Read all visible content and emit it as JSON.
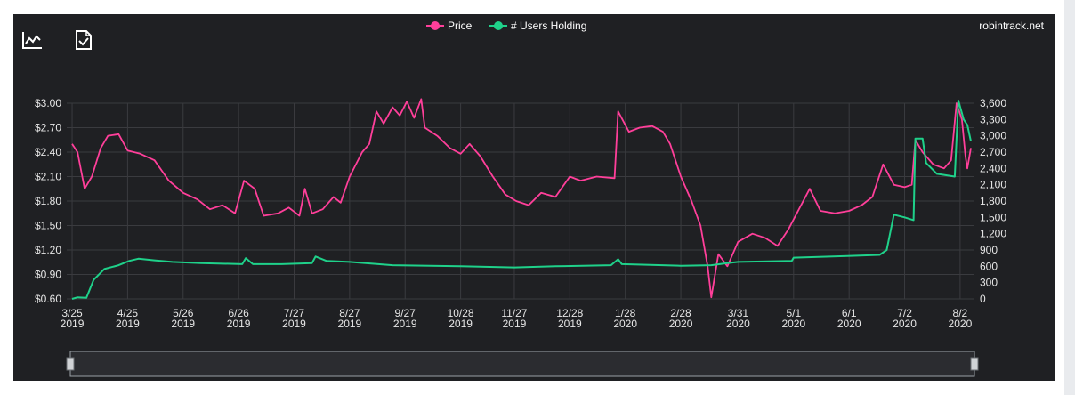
{
  "colors": {
    "background": "#1f2023",
    "price": "#ff3f9a",
    "users": "#1fd18a",
    "grid": "#3a3b3f",
    "text": "#e6e6e6",
    "slider_border": "#9aa0a6"
  },
  "toolbar": {
    "chart_icon": "line-chart-icon",
    "export_icon": "file-check-icon"
  },
  "watermark": "robintrack.net",
  "chart_data": {
    "type": "line",
    "legend_placement": "top-center",
    "grid": true,
    "x_ticks": [
      {
        "date": "2019-03-25",
        "l1": "3/25",
        "l2": "2019"
      },
      {
        "date": "2019-04-25",
        "l1": "4/25",
        "l2": "2019"
      },
      {
        "date": "2019-05-26",
        "l1": "5/26",
        "l2": "2019"
      },
      {
        "date": "2019-06-26",
        "l1": "6/26",
        "l2": "2019"
      },
      {
        "date": "2019-07-27",
        "l1": "7/27",
        "l2": "2019"
      },
      {
        "date": "2019-08-27",
        "l1": "8/27",
        "l2": "2019"
      },
      {
        "date": "2019-09-27",
        "l1": "9/27",
        "l2": "2019"
      },
      {
        "date": "2019-10-28",
        "l1": "10/28",
        "l2": "2019"
      },
      {
        "date": "2019-11-27",
        "l1": "11/27",
        "l2": "2019"
      },
      {
        "date": "2019-12-28",
        "l1": "12/28",
        "l2": "2019"
      },
      {
        "date": "2020-01-28",
        "l1": "1/28",
        "l2": "2020"
      },
      {
        "date": "2020-02-28",
        "l1": "2/28",
        "l2": "2020"
      },
      {
        "date": "2020-03-31",
        "l1": "3/31",
        "l2": "2020"
      },
      {
        "date": "2020-05-01",
        "l1": "5/1",
        "l2": "2020"
      },
      {
        "date": "2020-06-01",
        "l1": "6/1",
        "l2": "2020"
      },
      {
        "date": "2020-07-02",
        "l1": "7/2",
        "l2": "2020"
      },
      {
        "date": "2020-08-02",
        "l1": "8/2",
        "l2": "2020"
      }
    ],
    "x_range": [
      "2019-03-22",
      "2020-08-10"
    ],
    "y_left": {
      "ylim": [
        0.6,
        3.0
      ],
      "ticks": [
        0.6,
        0.9,
        1.2,
        1.5,
        1.8,
        2.1,
        2.4,
        2.7,
        3.0
      ],
      "tick_labels": [
        "$0.60",
        "$0.90",
        "$1.20",
        "$1.50",
        "$1.80",
        "$2.10",
        "$2.40",
        "$2.70",
        "$3.00"
      ]
    },
    "y_right": {
      "ylim": [
        0,
        3600
      ],
      "ticks": [
        0,
        300,
        600,
        900,
        1200,
        1500,
        1800,
        2100,
        2400,
        2700,
        3000,
        3300,
        3600
      ],
      "tick_labels": [
        "0",
        "300",
        "600",
        "900",
        "1,200",
        "1,500",
        "1,800",
        "2,100",
        "2,400",
        "2,700",
        "3,000",
        "3,300",
        "3,600"
      ]
    },
    "series": [
      {
        "name": "Price",
        "axis": "left",
        "points": [
          [
            "2019-03-25",
            2.5
          ],
          [
            "2019-03-28",
            2.4
          ],
          [
            "2019-04-01",
            1.95
          ],
          [
            "2019-04-05",
            2.1
          ],
          [
            "2019-04-10",
            2.45
          ],
          [
            "2019-04-14",
            2.6
          ],
          [
            "2019-04-20",
            2.62
          ],
          [
            "2019-04-25",
            2.42
          ],
          [
            "2019-05-02",
            2.38
          ],
          [
            "2019-05-10",
            2.3
          ],
          [
            "2019-05-18",
            2.05
          ],
          [
            "2019-05-26",
            1.9
          ],
          [
            "2019-06-03",
            1.82
          ],
          [
            "2019-06-10",
            1.7
          ],
          [
            "2019-06-17",
            1.75
          ],
          [
            "2019-06-24",
            1.65
          ],
          [
            "2019-06-29",
            2.05
          ],
          [
            "2019-07-05",
            1.95
          ],
          [
            "2019-07-10",
            1.62
          ],
          [
            "2019-07-18",
            1.65
          ],
          [
            "2019-07-24",
            1.72
          ],
          [
            "2019-07-30",
            1.62
          ],
          [
            "2019-08-02",
            1.95
          ],
          [
            "2019-08-06",
            1.65
          ],
          [
            "2019-08-12",
            1.7
          ],
          [
            "2019-08-18",
            1.85
          ],
          [
            "2019-08-22",
            1.78
          ],
          [
            "2019-08-27",
            2.1
          ],
          [
            "2019-09-03",
            2.4
          ],
          [
            "2019-09-07",
            2.5
          ],
          [
            "2019-09-11",
            2.9
          ],
          [
            "2019-09-15",
            2.75
          ],
          [
            "2019-09-20",
            2.95
          ],
          [
            "2019-09-24",
            2.85
          ],
          [
            "2019-09-28",
            3.02
          ],
          [
            "2019-10-02",
            2.82
          ],
          [
            "2019-10-06",
            3.05
          ],
          [
            "2019-10-08",
            2.7
          ],
          [
            "2019-10-15",
            2.6
          ],
          [
            "2019-10-22",
            2.45
          ],
          [
            "2019-10-28",
            2.38
          ],
          [
            "2019-11-02",
            2.5
          ],
          [
            "2019-11-08",
            2.35
          ],
          [
            "2019-11-15",
            2.1
          ],
          [
            "2019-11-22",
            1.88
          ],
          [
            "2019-11-28",
            1.8
          ],
          [
            "2019-12-05",
            1.75
          ],
          [
            "2019-12-12",
            1.9
          ],
          [
            "2019-12-20",
            1.85
          ],
          [
            "2019-12-28",
            2.1
          ],
          [
            "2020-01-03",
            2.05
          ],
          [
            "2020-01-12",
            2.1
          ],
          [
            "2020-01-22",
            2.08
          ],
          [
            "2020-01-24",
            2.9
          ],
          [
            "2020-01-30",
            2.65
          ],
          [
            "2020-02-05",
            2.7
          ],
          [
            "2020-02-12",
            2.72
          ],
          [
            "2020-02-18",
            2.65
          ],
          [
            "2020-02-22",
            2.5
          ],
          [
            "2020-02-28",
            2.1
          ],
          [
            "2020-03-05",
            1.8
          ],
          [
            "2020-03-10",
            1.5
          ],
          [
            "2020-03-14",
            1.0
          ],
          [
            "2020-03-16",
            0.62
          ],
          [
            "2020-03-20",
            1.15
          ],
          [
            "2020-03-25",
            1.0
          ],
          [
            "2020-03-31",
            1.3
          ],
          [
            "2020-04-08",
            1.4
          ],
          [
            "2020-04-15",
            1.35
          ],
          [
            "2020-04-22",
            1.25
          ],
          [
            "2020-04-28",
            1.45
          ],
          [
            "2020-05-04",
            1.7
          ],
          [
            "2020-05-10",
            1.95
          ],
          [
            "2020-05-16",
            1.68
          ],
          [
            "2020-05-24",
            1.65
          ],
          [
            "2020-06-01",
            1.68
          ],
          [
            "2020-06-08",
            1.75
          ],
          [
            "2020-06-14",
            1.85
          ],
          [
            "2020-06-20",
            2.25
          ],
          [
            "2020-06-26",
            2.0
          ],
          [
            "2020-07-02",
            1.97
          ],
          [
            "2020-07-06",
            2.0
          ],
          [
            "2020-07-08",
            2.55
          ],
          [
            "2020-07-12",
            2.4
          ],
          [
            "2020-07-18",
            2.25
          ],
          [
            "2020-07-24",
            2.2
          ],
          [
            "2020-07-28",
            2.3
          ],
          [
            "2020-07-31",
            3.0
          ],
          [
            "2020-08-03",
            2.8
          ],
          [
            "2020-08-05",
            2.35
          ],
          [
            "2020-08-06",
            2.2
          ],
          [
            "2020-08-08",
            2.45
          ]
        ]
      },
      {
        "name": "# Users Holding",
        "axis": "right",
        "points": [
          [
            "2019-03-25",
            0
          ],
          [
            "2019-03-28",
            30
          ],
          [
            "2019-04-02",
            20
          ],
          [
            "2019-04-06",
            350
          ],
          [
            "2019-04-12",
            550
          ],
          [
            "2019-04-20",
            620
          ],
          [
            "2019-04-26",
            700
          ],
          [
            "2019-05-01",
            740
          ],
          [
            "2019-05-10",
            710
          ],
          [
            "2019-05-20",
            680
          ],
          [
            "2019-06-05",
            660
          ],
          [
            "2019-06-28",
            640
          ],
          [
            "2019-06-30",
            750
          ],
          [
            "2019-07-04",
            640
          ],
          [
            "2019-07-20",
            640
          ],
          [
            "2019-08-06",
            660
          ],
          [
            "2019-08-08",
            780
          ],
          [
            "2019-08-14",
            700
          ],
          [
            "2019-08-27",
            680
          ],
          [
            "2019-09-20",
            620
          ],
          [
            "2019-10-28",
            600
          ],
          [
            "2019-11-27",
            580
          ],
          [
            "2019-12-20",
            600
          ],
          [
            "2020-01-20",
            620
          ],
          [
            "2020-01-24",
            730
          ],
          [
            "2020-01-26",
            640
          ],
          [
            "2020-02-28",
            610
          ],
          [
            "2020-03-16",
            620
          ],
          [
            "2020-03-25",
            660
          ],
          [
            "2020-03-31",
            680
          ],
          [
            "2020-04-30",
            700
          ],
          [
            "2020-05-01",
            760
          ],
          [
            "2020-05-31",
            790
          ],
          [
            "2020-06-18",
            810
          ],
          [
            "2020-06-22",
            900
          ],
          [
            "2020-06-26",
            1550
          ],
          [
            "2020-07-02",
            1500
          ],
          [
            "2020-07-07",
            1450
          ],
          [
            "2020-07-08",
            2950
          ],
          [
            "2020-07-12",
            2950
          ],
          [
            "2020-07-14",
            2500
          ],
          [
            "2020-07-20",
            2300
          ],
          [
            "2020-07-30",
            2250
          ],
          [
            "2020-08-01",
            3650
          ],
          [
            "2020-08-04",
            3300
          ],
          [
            "2020-08-06",
            3200
          ],
          [
            "2020-08-08",
            2900
          ]
        ]
      }
    ]
  }
}
